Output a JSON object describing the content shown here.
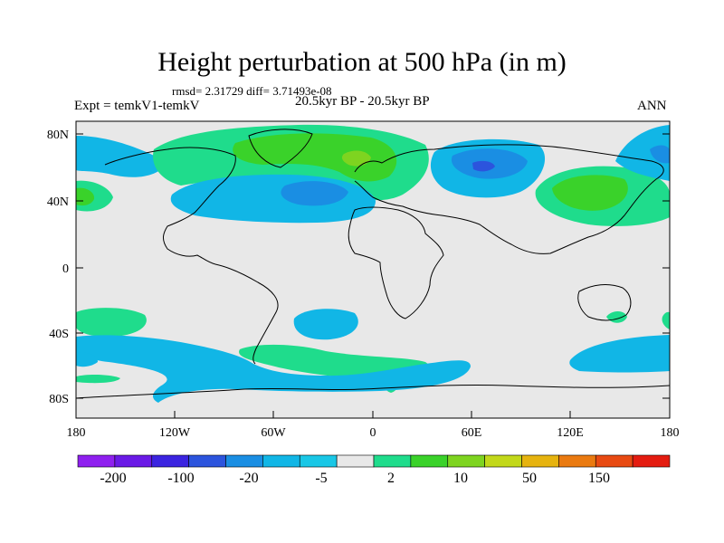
{
  "title": "Height perturbation at 500 hPa (in m)",
  "stats": "rmsd= 2.31729 diff= 3.71493e-08",
  "experiment": "Expt = temkV1-temkV",
  "period": "20.5kyr BP - 20.5kyr BP",
  "season": "ANN",
  "lat_ticks": [
    "80N",
    "40N",
    "0",
    "40S",
    "80S"
  ],
  "lon_ticks": [
    "180",
    "120W",
    "60W",
    "0",
    "60E",
    "120E",
    "180"
  ],
  "colorbar": {
    "labels": [
      "-200",
      "-100",
      "-20",
      "-5",
      "2",
      "10",
      "50",
      "150"
    ],
    "colors": [
      "#8f20ef",
      "#6a1ae6",
      "#3b24e0",
      "#2c54dd",
      "#1a8ee3",
      "#11b6e6",
      "#19c7e6",
      "#e8e8e8",
      "#1fdc8c",
      "#3ad22a",
      "#7ed420",
      "#c2d81a",
      "#e6b30f",
      "#ea7a10",
      "#e84a12",
      "#e41c10"
    ]
  },
  "anomalies": [
    {
      "region": "Greenland-Scandinavia",
      "level": "10",
      "color": "#3ad22a"
    },
    {
      "region": "North Atlantic",
      "level": "-5",
      "color": "#11b6e6"
    },
    {
      "region": "Siberia",
      "level": "-5",
      "color": "#11b6e6"
    },
    {
      "region": "East Asia",
      "level": "10",
      "color": "#3ad22a"
    },
    {
      "region": "Southern Ocean",
      "level": "-5",
      "color": "#11b6e6"
    }
  ]
}
